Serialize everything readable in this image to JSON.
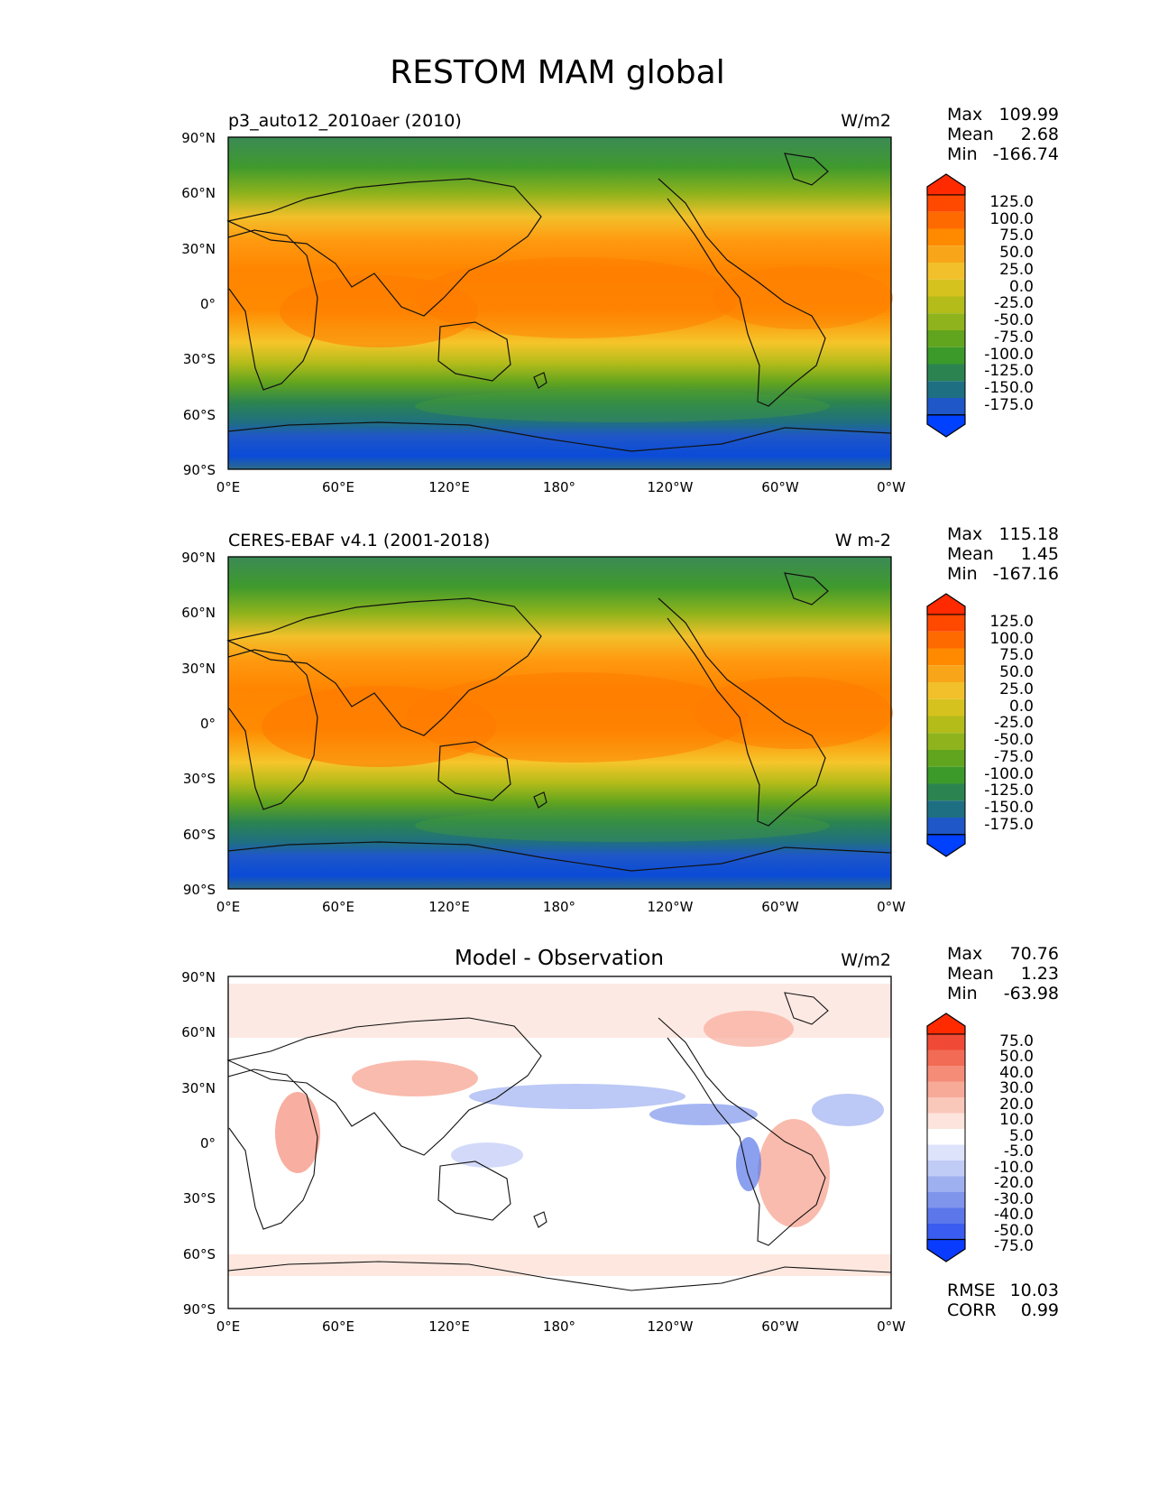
{
  "figure": {
    "title": "RESTOM MAM global"
  },
  "axes": {
    "lat_ticks": [
      "90°N",
      "60°N",
      "30°N",
      "0°",
      "30°S",
      "60°S",
      "90°S"
    ],
    "lon_ticks": [
      "0°E",
      "60°E",
      "120°E",
      "180°",
      "120°W",
      "60°W",
      "0°W"
    ]
  },
  "panels": [
    {
      "left_title": "p3_auto12_2010aer (2010)",
      "center_title": "",
      "units": "W/m2",
      "stats": {
        "max_label": "Max",
        "max": "109.99",
        "mean_label": "Mean",
        "mean": "2.68",
        "min_label": "Min",
        "min": "-166.74"
      },
      "colorbar": {
        "labels": [
          "125.0",
          "100.0",
          "75.0",
          "50.0",
          "25.0",
          "0.0",
          "-25.0",
          "-50.0",
          "-75.0",
          "-100.0",
          "-125.0",
          "-150.0",
          "-175.0"
        ],
        "colors": [
          "#ff2a00",
          "#ff4800",
          "#ff6a00",
          "#ff8a00",
          "#f9a51a",
          "#f2c02a",
          "#d6c21e",
          "#b4bc1a",
          "#8fb31c",
          "#61a41e",
          "#3b9a2a",
          "#2b8450",
          "#1f6f82",
          "#1f57c8",
          "#0040ff"
        ]
      },
      "bottom_stats": null
    },
    {
      "left_title": "CERES-EBAF v4.1 (2001-2018)",
      "center_title": "",
      "units": "W m-2",
      "stats": {
        "max_label": "Max",
        "max": "115.18",
        "mean_label": "Mean",
        "mean": "1.45",
        "min_label": "Min",
        "min": "-167.16"
      },
      "colorbar": {
        "labels": [
          "125.0",
          "100.0",
          "75.0",
          "50.0",
          "25.0",
          "0.0",
          "-25.0",
          "-50.0",
          "-75.0",
          "-100.0",
          "-125.0",
          "-150.0",
          "-175.0"
        ],
        "colors": [
          "#ff2a00",
          "#ff4800",
          "#ff6a00",
          "#ff8a00",
          "#f9a51a",
          "#f2c02a",
          "#d6c21e",
          "#b4bc1a",
          "#8fb31c",
          "#61a41e",
          "#3b9a2a",
          "#2b8450",
          "#1f6f82",
          "#1f57c8",
          "#0040ff"
        ]
      },
      "bottom_stats": null
    },
    {
      "left_title": "",
      "center_title": "Model - Observation",
      "units": "W/m2",
      "stats": {
        "max_label": "Max",
        "max": "70.76",
        "mean_label": "Mean",
        "mean": "1.23",
        "min_label": "Min",
        "min": "-63.98"
      },
      "colorbar": {
        "labels": [
          "75.0",
          "50.0",
          "40.0",
          "30.0",
          "20.0",
          "10.0",
          "5.0",
          "-5.0",
          "-10.0",
          "-20.0",
          "-30.0",
          "-40.0",
          "-50.0",
          "-75.0"
        ],
        "colors": [
          "#ff2a00",
          "#f04a36",
          "#f26b55",
          "#f58c78",
          "#f8aa98",
          "#fac8bb",
          "#fde4dc",
          "#ffffff",
          "#dde3fb",
          "#c0cbf6",
          "#9fb0f1",
          "#7f95ec",
          "#5b77ea",
          "#3a5cf0",
          "#0a3cff"
        ]
      },
      "bottom_stats": {
        "rmse_label": "RMSE",
        "rmse": "10.03",
        "corr_label": "CORR",
        "corr": "0.99"
      }
    }
  ]
}
